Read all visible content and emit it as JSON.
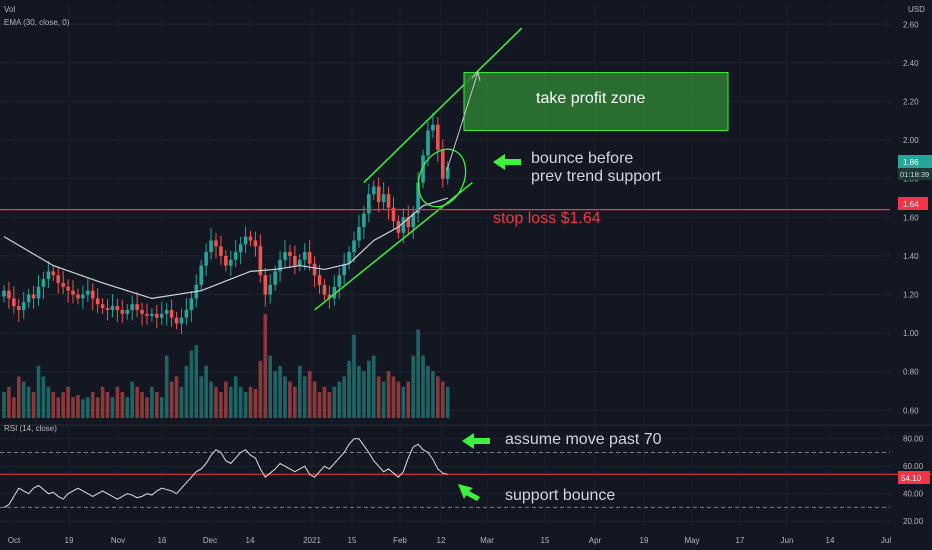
{
  "legend": {
    "vol": "Vol",
    "ema": "EMA (30, close, 0)",
    "rsi": "RSI (14, close)"
  },
  "axis": {
    "currency": "USD",
    "price_ticks": [
      "2.60",
      "2.40",
      "2.20",
      "2.00",
      "1.80",
      "1.60",
      "1.40",
      "1.20",
      "1.00",
      "0.80",
      "0.60"
    ],
    "rsi_ticks": [
      "80.00",
      "60.00",
      "40.00",
      "20.00"
    ],
    "x_ticks": [
      "Oct",
      "19",
      "Nov",
      "16",
      "Dec",
      "14",
      "2021",
      "15",
      "Feb",
      "12",
      "Mar",
      "15",
      "Apr",
      "19",
      "May",
      "17",
      "Jun",
      "14",
      "Jul"
    ]
  },
  "badges": {
    "last_price": "1.86",
    "countdown": "01:18:39",
    "stop_price": "1.64",
    "rsi_value": "54.10"
  },
  "annotations": {
    "take_profit": "take profit zone",
    "bounce_line1": "bounce before",
    "bounce_line2": "prev trend support",
    "stop_loss": "stop loss $1.64",
    "rsi_move": "assume move past 70",
    "rsi_support": "support bounce"
  },
  "colors": {
    "up": "#26a69a",
    "down": "#ef5350",
    "annotation": "#3cf33c",
    "stop": "#f23645",
    "ema": "#d1d4dc",
    "zone": "#2e7d32"
  },
  "chart_data": {
    "type": "candlestick",
    "price_range": [
      0.55,
      2.7
    ],
    "rsi_range": [
      15,
      90
    ],
    "rsi_levels": [
      70,
      30
    ],
    "stop_loss": 1.64,
    "take_profit_zone": [
      2.05,
      2.35
    ],
    "price_closes": [
      1.22,
      1.18,
      1.14,
      1.12,
      1.16,
      1.2,
      1.18,
      1.24,
      1.28,
      1.32,
      1.3,
      1.26,
      1.24,
      1.22,
      1.2,
      1.18,
      1.2,
      1.22,
      1.18,
      1.15,
      1.13,
      1.12,
      1.14,
      1.12,
      1.1,
      1.12,
      1.15,
      1.12,
      1.1,
      1.09,
      1.1,
      1.08,
      1.1,
      1.12,
      1.08,
      1.05,
      1.08,
      1.12,
      1.18,
      1.25,
      1.35,
      1.42,
      1.48,
      1.45,
      1.4,
      1.35,
      1.38,
      1.42,
      1.46,
      1.5,
      1.48,
      1.45,
      1.3,
      1.2,
      1.25,
      1.32,
      1.38,
      1.42,
      1.4,
      1.35,
      1.38,
      1.42,
      1.36,
      1.3,
      1.25,
      1.2,
      1.18,
      1.24,
      1.3,
      1.36,
      1.42,
      1.48,
      1.55,
      1.62,
      1.72,
      1.76,
      1.68,
      1.72,
      1.65,
      1.58,
      1.52,
      1.6,
      1.55,
      1.62,
      1.78,
      1.92,
      2.05,
      2.08,
      1.95,
      1.8,
      1.86
    ],
    "rsi_values": [
      30,
      32,
      38,
      44,
      42,
      40,
      44,
      46,
      43,
      40,
      41,
      38,
      36,
      40,
      42,
      44,
      42,
      40,
      38,
      40,
      42,
      40,
      38,
      36,
      38,
      40,
      39,
      37,
      38,
      40,
      39,
      42,
      44,
      43,
      42,
      40,
      44,
      48,
      52,
      56,
      58,
      62,
      68,
      72,
      70,
      64,
      62,
      66,
      70,
      72,
      68,
      66,
      58,
      52,
      55,
      58,
      62,
      60,
      58,
      56,
      58,
      60,
      54,
      52,
      56,
      60,
      58,
      62,
      66,
      70,
      76,
      80,
      80,
      75,
      70,
      64,
      60,
      56,
      58,
      55,
      52,
      56,
      66,
      74,
      76,
      72,
      70,
      65,
      58,
      55,
      54
    ],
    "volume_relative": [
      0.25,
      0.3,
      0.2,
      0.4,
      0.35,
      0.3,
      0.25,
      0.5,
      0.4,
      0.3,
      0.25,
      0.2,
      0.25,
      0.3,
      0.2,
      0.22,
      0.18,
      0.2,
      0.25,
      0.2,
      0.3,
      0.25,
      0.2,
      0.3,
      0.25,
      0.2,
      0.35,
      0.3,
      0.25,
      0.2,
      0.3,
      0.25,
      0.2,
      0.6,
      0.35,
      0.4,
      0.3,
      0.5,
      0.65,
      0.7,
      0.4,
      0.5,
      0.35,
      0.3,
      0.25,
      0.35,
      0.3,
      0.4,
      0.3,
      0.25,
      0.3,
      0.28,
      0.55,
      1.0,
      0.6,
      0.45,
      0.5,
      0.4,
      0.35,
      0.3,
      0.5,
      0.4,
      0.45,
      0.35,
      0.25,
      0.3,
      0.25,
      0.3,
      0.35,
      0.4,
      0.55,
      0.8,
      0.5,
      0.45,
      0.55,
      0.6,
      0.4,
      0.35,
      0.45,
      0.4,
      0.35,
      0.3,
      0.35,
      0.6,
      0.85,
      0.6,
      0.5,
      0.45,
      0.4,
      0.35,
      0.3
    ],
    "ema_points": [
      [
        0,
        1.5
      ],
      [
        10,
        1.35
      ],
      [
        20,
        1.26
      ],
      [
        30,
        1.18
      ],
      [
        40,
        1.22
      ],
      [
        50,
        1.32
      ],
      [
        55,
        1.33
      ],
      [
        60,
        1.35
      ],
      [
        65,
        1.33
      ],
      [
        70,
        1.36
      ],
      [
        75,
        1.48
      ],
      [
        80,
        1.55
      ],
      [
        85,
        1.66
      ],
      [
        90,
        1.7
      ]
    ]
  }
}
